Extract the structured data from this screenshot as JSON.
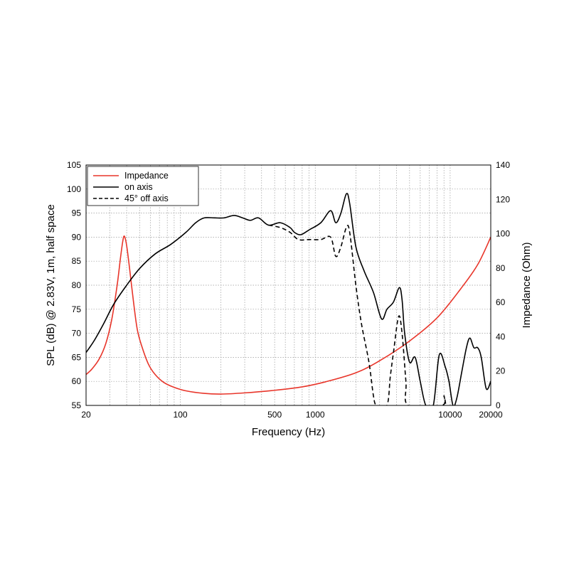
{
  "chart_data": {
    "type": "line",
    "xlabel": "Frequency (Hz)",
    "ylabel": "SPL (dB) @ 2.83V, 1m, half space",
    "y2label": "Impedance (Ohm)",
    "x_scale": "log",
    "xlim": [
      20,
      20000
    ],
    "ylim": [
      55,
      105
    ],
    "y2lim": [
      0,
      140
    ],
    "x_tick_labels": [
      "20",
      "100",
      "500",
      "1000",
      "10000",
      "20000"
    ],
    "x_tick_values": [
      20,
      100,
      500,
      1000,
      10000,
      20000
    ],
    "y_ticks": [
      55,
      60,
      65,
      70,
      75,
      80,
      85,
      90,
      95,
      100,
      105
    ],
    "y2_ticks": [
      0,
      20,
      40,
      60,
      80,
      100,
      120,
      140
    ],
    "grid": true,
    "legend_position": "top-left",
    "series": [
      {
        "name": "Impedance",
        "axis": "right",
        "color": "#e8352a",
        "style": "solid",
        "points": [
          [
            20,
            18
          ],
          [
            22,
            21
          ],
          [
            25,
            27
          ],
          [
            28,
            36
          ],
          [
            31,
            50
          ],
          [
            34,
            70
          ],
          [
            36,
            86
          ],
          [
            37.5,
            96
          ],
          [
            38.5,
            98.5
          ],
          [
            40,
            93
          ],
          [
            42,
            80
          ],
          [
            45,
            60
          ],
          [
            48,
            44
          ],
          [
            52,
            34
          ],
          [
            58,
            24
          ],
          [
            65,
            18
          ],
          [
            75,
            13.5
          ],
          [
            90,
            10.5
          ],
          [
            110,
            8.5
          ],
          [
            150,
            7
          ],
          [
            200,
            6.6
          ],
          [
            300,
            7.3
          ],
          [
            500,
            8.8
          ],
          [
            800,
            10.8
          ],
          [
            1200,
            13.8
          ],
          [
            2000,
            19
          ],
          [
            3000,
            26
          ],
          [
            5000,
            37.5
          ],
          [
            8000,
            51
          ],
          [
            12000,
            68
          ],
          [
            16000,
            82
          ],
          [
            20000,
            98
          ]
        ]
      },
      {
        "name": "on axis",
        "axis": "left",
        "color": "#000000",
        "style": "solid",
        "points": [
          [
            20,
            66
          ],
          [
            23,
            68.5
          ],
          [
            27,
            72
          ],
          [
            32,
            76
          ],
          [
            40,
            80
          ],
          [
            50,
            83.5
          ],
          [
            65,
            86.5
          ],
          [
            85,
            88.5
          ],
          [
            110,
            91
          ],
          [
            130,
            93
          ],
          [
            150,
            94
          ],
          [
            180,
            94
          ],
          [
            210,
            94
          ],
          [
            250,
            94.5
          ],
          [
            290,
            94
          ],
          [
            330,
            93.5
          ],
          [
            380,
            94
          ],
          [
            450,
            92.5
          ],
          [
            550,
            93
          ],
          [
            650,
            92
          ],
          [
            700,
            91
          ],
          [
            780,
            90.5
          ],
          [
            900,
            91.5
          ],
          [
            1100,
            93
          ],
          [
            1300,
            95.5
          ],
          [
            1420,
            93
          ],
          [
            1550,
            95
          ],
          [
            1700,
            99
          ],
          [
            1800,
            97
          ],
          [
            2000,
            88
          ],
          [
            2300,
            83
          ],
          [
            2700,
            78.5
          ],
          [
            3100,
            73
          ],
          [
            3400,
            75
          ],
          [
            3800,
            76.5
          ],
          [
            4200,
            79.5
          ],
          [
            4400,
            77
          ],
          [
            4600,
            70
          ],
          [
            5000,
            64
          ],
          [
            5500,
            65
          ],
          [
            6000,
            60
          ],
          [
            6600,
            55
          ],
          [
            7500,
            55
          ],
          [
            8300,
            65.5
          ],
          [
            9200,
            63
          ],
          [
            9800,
            60
          ],
          [
            10500,
            55
          ],
          [
            11200,
            56.5
          ],
          [
            12200,
            62
          ],
          [
            13200,
            67
          ],
          [
            14000,
            69
          ],
          [
            15000,
            67
          ],
          [
            16000,
            67
          ],
          [
            17000,
            65
          ],
          [
            18500,
            58.5
          ],
          [
            20000,
            60
          ]
        ]
      },
      {
        "name": "45° off axis",
        "axis": "left",
        "color": "#000000",
        "style": "dashed",
        "points": [
          [
            450,
            92.5
          ],
          [
            550,
            92
          ],
          [
            650,
            91
          ],
          [
            750,
            89.5
          ],
          [
            900,
            89.5
          ],
          [
            1100,
            89.5
          ],
          [
            1300,
            90
          ],
          [
            1420,
            86
          ],
          [
            1550,
            88
          ],
          [
            1700,
            92
          ],
          [
            1800,
            91
          ],
          [
            2000,
            80
          ],
          [
            2200,
            72
          ],
          [
            2500,
            64
          ],
          [
            2700,
            57
          ],
          [
            2850,
            55
          ],
          [
            3400,
            55
          ],
          [
            3600,
            61
          ],
          [
            3800,
            66
          ],
          [
            4150,
            73.5
          ],
          [
            4400,
            70
          ],
          [
            4700,
            60
          ],
          [
            4900,
            55
          ],
          [
            8700,
            55
          ],
          [
            9000,
            57
          ],
          [
            9300,
            55
          ]
        ]
      }
    ]
  }
}
